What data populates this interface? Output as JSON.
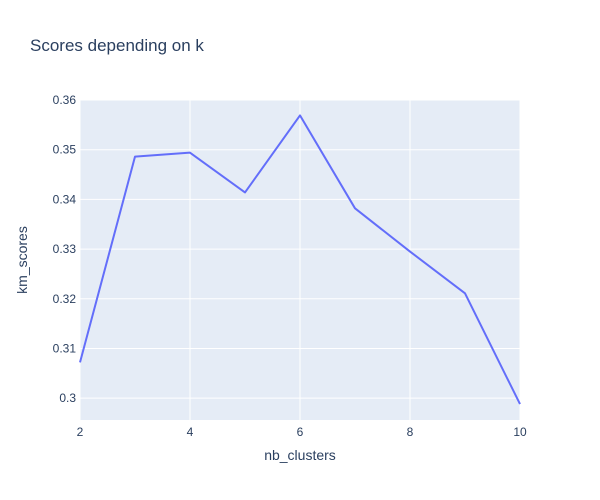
{
  "chart_data": {
    "type": "line",
    "title": "Scores depending on k",
    "xlabel": "nb_clusters",
    "ylabel": "km_scores",
    "x": [
      2,
      3,
      4,
      5,
      6,
      7,
      8,
      9,
      10
    ],
    "series": [
      {
        "values": [
          0.3072,
          0.3486,
          0.3494,
          0.3414,
          0.3569,
          0.3382,
          0.3295,
          0.3211,
          0.2988
        ],
        "color": "#636efa"
      }
    ],
    "xlim": [
      2,
      10
    ],
    "ylim": [
      0.2956,
      0.36
    ],
    "x_ticks": [
      2,
      4,
      6,
      8,
      10
    ],
    "x_tick_labels": [
      "2",
      "4",
      "6",
      "8",
      "10"
    ],
    "y_ticks": [
      0.3,
      0.31,
      0.32,
      0.33,
      0.34,
      0.35,
      0.36
    ],
    "y_tick_labels": [
      "0.3",
      "0.31",
      "0.32",
      "0.33",
      "0.34",
      "0.35",
      "0.36"
    ],
    "grid": true,
    "plot_background": "#e5ecf6",
    "grid_color": "#ffffff",
    "text_color": "#2a3f5f"
  }
}
